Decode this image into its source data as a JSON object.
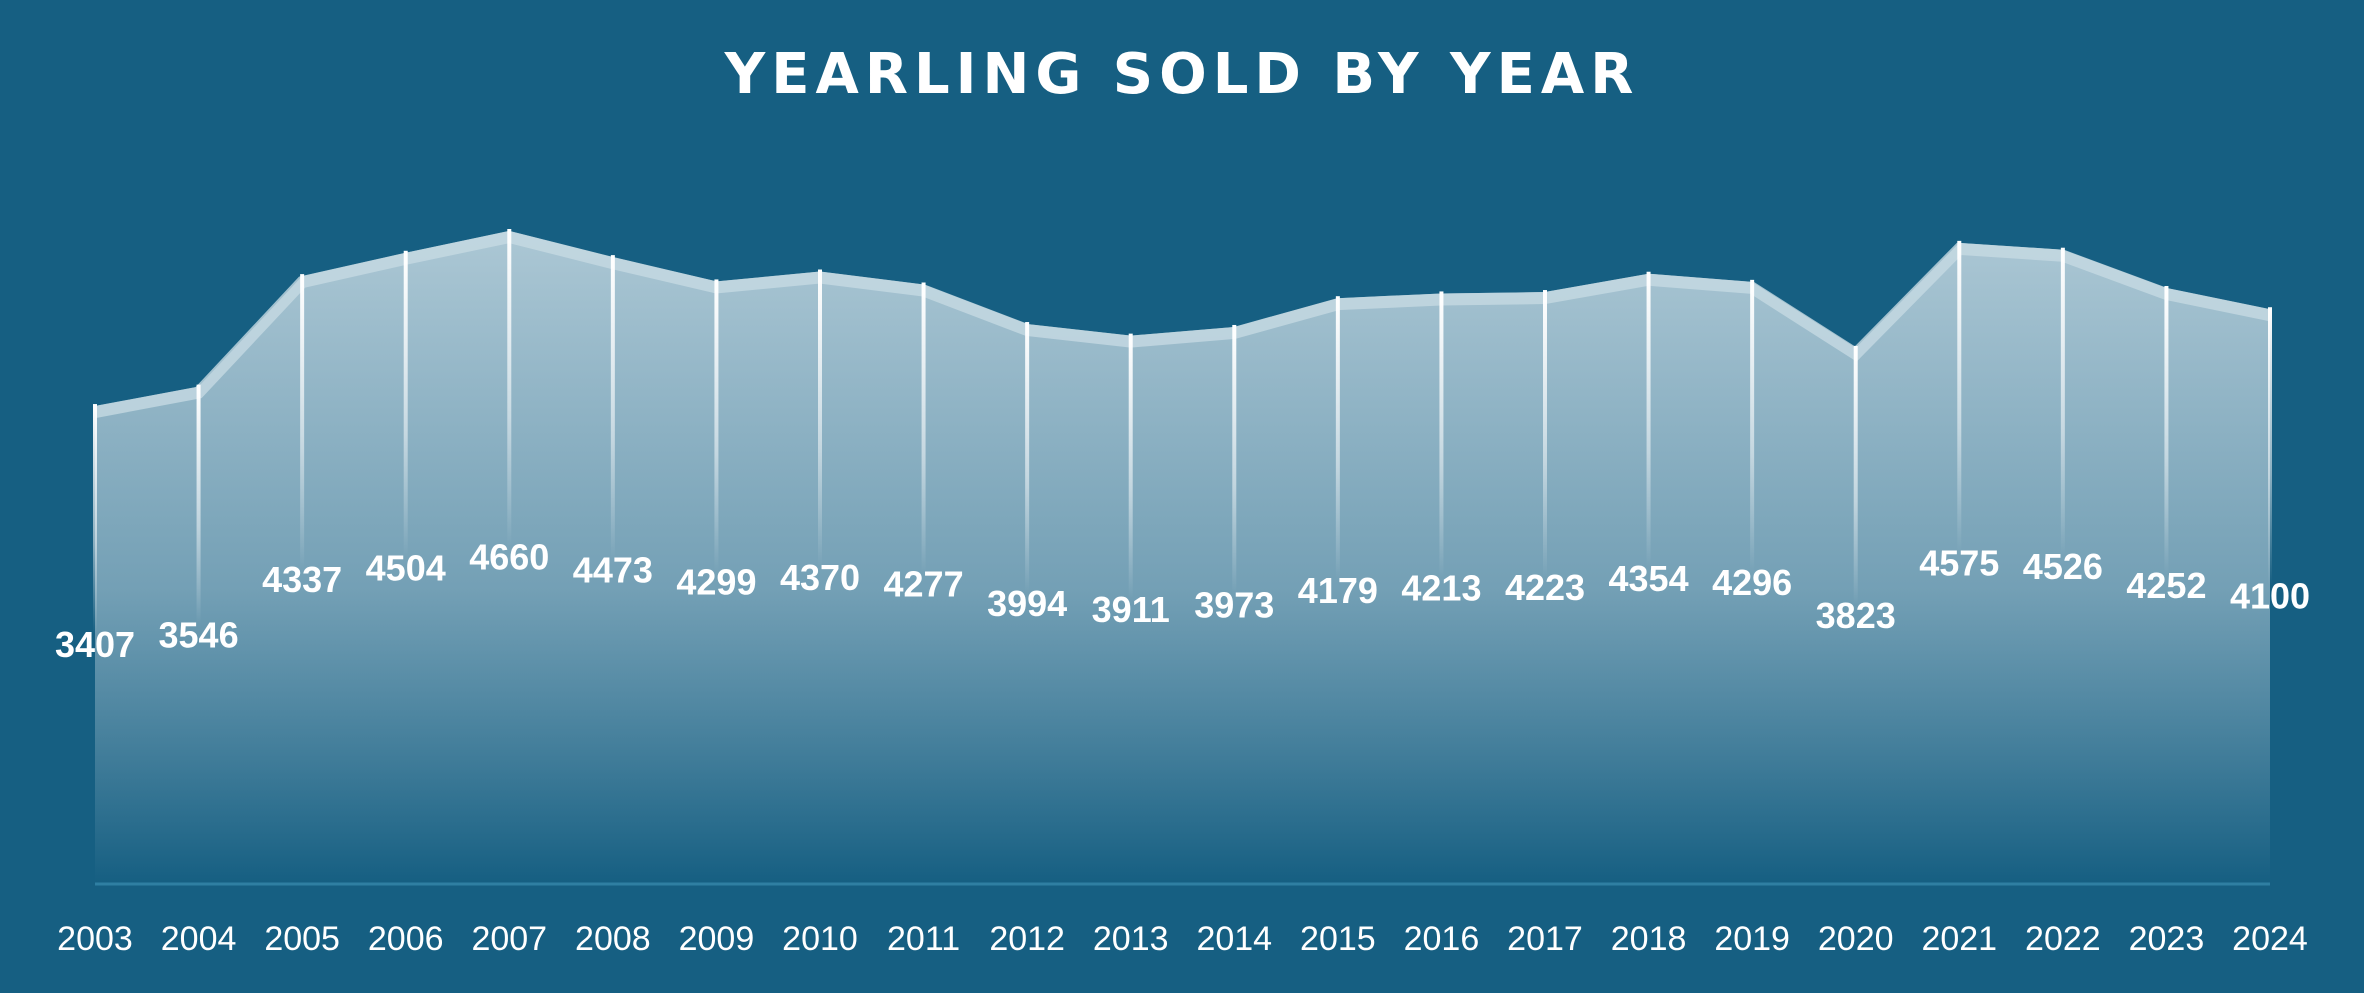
{
  "chart_data": {
    "type": "area",
    "title": "YEARLING SOLD BY YEAR",
    "categories": [
      "2003",
      "2004",
      "2005",
      "2006",
      "2007",
      "2008",
      "2009",
      "2010",
      "2011",
      "2012",
      "2013",
      "2014",
      "2015",
      "2016",
      "2017",
      "2018",
      "2019",
      "2020",
      "2021",
      "2022",
      "2023",
      "2024"
    ],
    "values": [
      3407,
      3546,
      4337,
      4504,
      4660,
      4473,
      4299,
      4370,
      4277,
      3994,
      3911,
      3973,
      4179,
      4213,
      4223,
      4354,
      4296,
      3823,
      4575,
      4526,
      4252,
      4100
    ],
    "ylim": [
      0,
      4660
    ],
    "grid": false,
    "legend": "none",
    "colors": {
      "background": "#165f82",
      "fill_top": "#b4cdd9",
      "line": "#c5d9e2",
      "text": "#ffffff"
    }
  }
}
